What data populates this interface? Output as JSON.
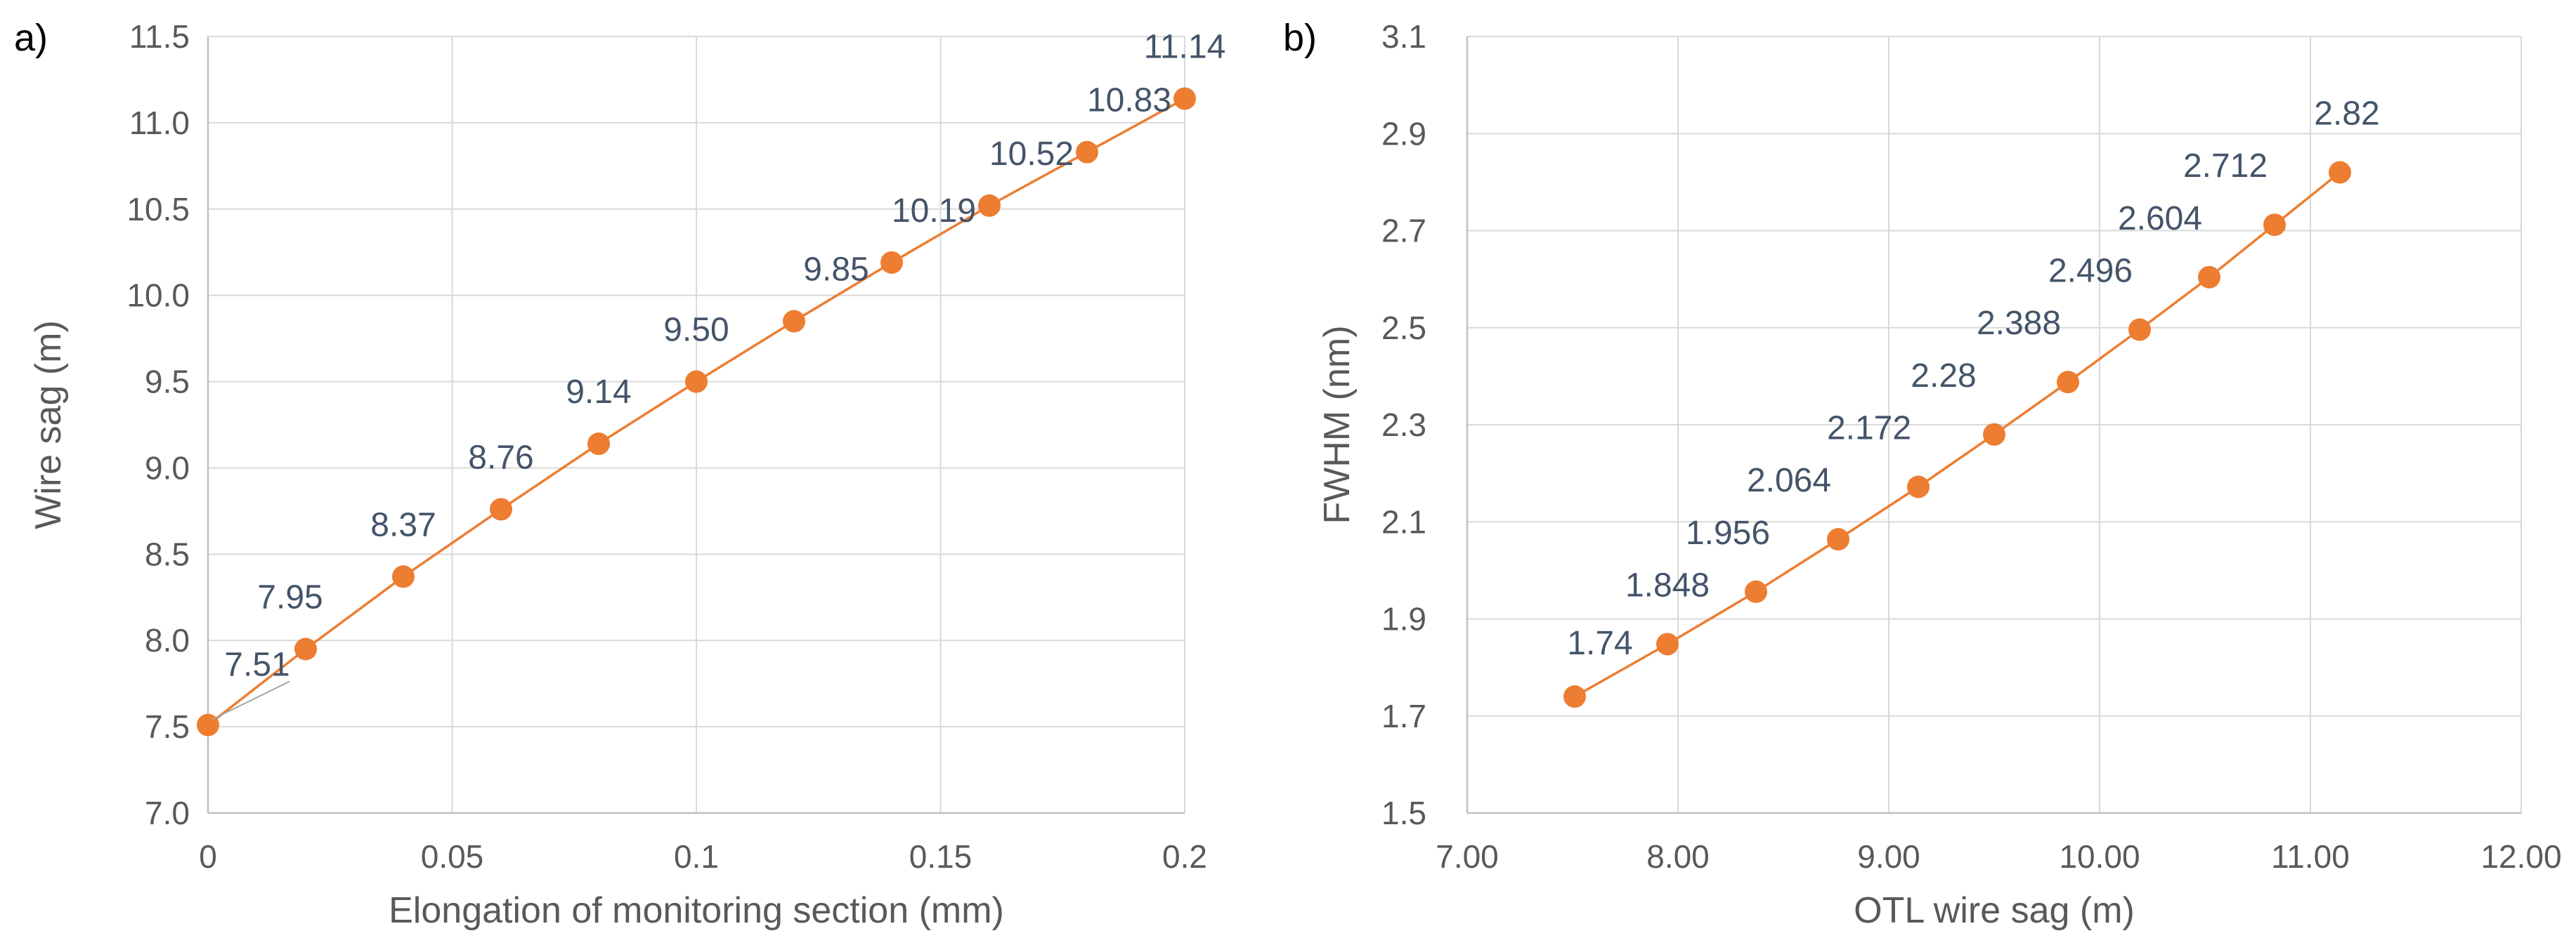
{
  "chart_data": [
    {
      "type": "line",
      "panel_label": "a)",
      "title": "",
      "xlabel": "Elongation of monitoring section (mm)",
      "ylabel": "Wire sag (m)",
      "xlim": [
        0,
        0.2
      ],
      "ylim": [
        7.0,
        11.5
      ],
      "x_ticks": [
        {
          "value": 0,
          "label": "0"
        },
        {
          "value": 0.05,
          "label": "0.05"
        },
        {
          "value": 0.1,
          "label": "0.1"
        },
        {
          "value": 0.15,
          "label": "0.15"
        },
        {
          "value": 0.2,
          "label": "0.2"
        }
      ],
      "y_ticks": [
        {
          "value": 7.0,
          "label": "7.0"
        },
        {
          "value": 7.5,
          "label": "7.5"
        },
        {
          "value": 8.0,
          "label": "8.0"
        },
        {
          "value": 8.5,
          "label": "8.5"
        },
        {
          "value": 9.0,
          "label": "9.0"
        },
        {
          "value": 9.5,
          "label": "9.5"
        },
        {
          "value": 10.0,
          "label": "10.0"
        },
        {
          "value": 10.5,
          "label": "10.5"
        },
        {
          "value": 11.0,
          "label": "11.0"
        },
        {
          "value": 11.5,
          "label": "11.5"
        }
      ],
      "grid": {
        "x": true,
        "y": true
      },
      "legend": "none",
      "series": [
        {
          "name": "Wire sag",
          "color": "#ed7d31",
          "x": [
            0,
            0.02,
            0.04,
            0.06,
            0.08,
            0.1,
            0.12,
            0.14,
            0.16,
            0.18,
            0.2
          ],
          "y": [
            7.51,
            7.95,
            8.37,
            8.76,
            9.14,
            9.5,
            9.85,
            10.19,
            10.52,
            10.83,
            11.14
          ],
          "labels": [
            "7.51",
            "7.95",
            "8.37",
            "8.76",
            "9.14",
            "9.50",
            "9.85",
            "10.19",
            "10.52",
            "10.83",
            "11.14"
          ]
        }
      ]
    },
    {
      "type": "line",
      "panel_label": "b)",
      "title": "",
      "xlabel": "OTL wire sag (m)",
      "ylabel": "FWHM (nm)",
      "xlim": [
        7.0,
        12.0
      ],
      "ylim": [
        1.5,
        3.1
      ],
      "x_ticks": [
        {
          "value": 7,
          "label": "7.00"
        },
        {
          "value": 8,
          "label": "8.00"
        },
        {
          "value": 9,
          "label": "9.00"
        },
        {
          "value": 10,
          "label": "10.00"
        },
        {
          "value": 11,
          "label": "11.00"
        },
        {
          "value": 12,
          "label": "12.00"
        }
      ],
      "y_ticks": [
        {
          "value": 1.5,
          "label": "1.5"
        },
        {
          "value": 1.7,
          "label": "1.7"
        },
        {
          "value": 1.9,
          "label": "1.9"
        },
        {
          "value": 2.1,
          "label": "2.1"
        },
        {
          "value": 2.3,
          "label": "2.3"
        },
        {
          "value": 2.5,
          "label": "2.5"
        },
        {
          "value": 2.7,
          "label": "2.7"
        },
        {
          "value": 2.9,
          "label": "2.9"
        },
        {
          "value": 3.1,
          "label": "3.1"
        }
      ],
      "grid": {
        "x": true,
        "y": true
      },
      "legend": "none",
      "series": [
        {
          "name": "FWHM",
          "color": "#ed7d31",
          "x": [
            7.51,
            7.95,
            8.37,
            8.76,
            9.14,
            9.5,
            9.85,
            10.19,
            10.52,
            10.83,
            11.14
          ],
          "y": [
            1.74,
            1.848,
            1.956,
            2.064,
            2.172,
            2.28,
            2.388,
            2.496,
            2.604,
            2.712,
            2.82
          ],
          "labels": [
            "1.74",
            "1.848",
            "1.956",
            "2.064",
            "2.172",
            "2.28",
            "2.388",
            "2.496",
            "2.604",
            "2.712",
            "2.82"
          ]
        }
      ]
    }
  ]
}
